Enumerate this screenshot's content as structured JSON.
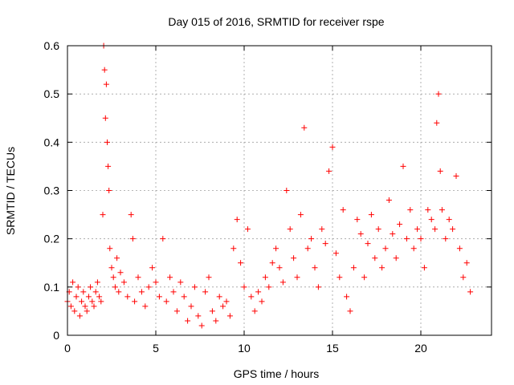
{
  "chart_data": {
    "type": "scatter",
    "title": "Day 015 of 2016, SRMTID for receiver rspe",
    "xlabel": "GPS time / hours",
    "ylabel": "SRMTID / TECUs",
    "xlim": [
      0,
      24
    ],
    "ylim": [
      0,
      0.6
    ],
    "xticks": [
      0,
      5,
      10,
      15,
      20
    ],
    "yticks": [
      0,
      0.1,
      0.2,
      0.3,
      0.4,
      0.5,
      0.6
    ],
    "xtick_labels": [
      "0",
      "5",
      "10",
      "15",
      "20"
    ],
    "ytick_labels": [
      "0",
      "0.1",
      "0.2",
      "0.3",
      "0.4",
      "0.5",
      "0.6"
    ],
    "grid": true,
    "marker": "+",
    "color": "#ff0000",
    "series": [
      {
        "name": "SRMTID",
        "x": [
          0.0,
          0.1,
          0.2,
          0.3,
          0.4,
          0.5,
          0.6,
          0.7,
          0.8,
          0.9,
          1.0,
          1.1,
          1.2,
          1.3,
          1.4,
          1.5,
          1.6,
          1.7,
          1.8,
          1.9,
          2.0,
          2.05,
          2.1,
          2.15,
          2.2,
          2.25,
          2.3,
          2.35,
          2.4,
          2.5,
          2.6,
          2.7,
          2.8,
          2.9,
          3.0,
          3.2,
          3.4,
          3.6,
          3.7,
          3.8,
          4.0,
          4.2,
          4.4,
          4.6,
          4.8,
          5.0,
          5.2,
          5.4,
          5.6,
          5.8,
          6.0,
          6.2,
          6.4,
          6.6,
          6.8,
          7.0,
          7.2,
          7.4,
          7.6,
          7.8,
          8.0,
          8.2,
          8.4,
          8.6,
          8.8,
          9.0,
          9.2,
          9.4,
          9.6,
          9.8,
          10.0,
          10.2,
          10.4,
          10.6,
          10.8,
          11.0,
          11.2,
          11.4,
          11.6,
          11.8,
          12.0,
          12.2,
          12.4,
          12.6,
          12.8,
          13.0,
          13.2,
          13.4,
          13.6,
          13.8,
          14.0,
          14.2,
          14.4,
          14.6,
          14.8,
          15.0,
          15.2,
          15.4,
          15.6,
          15.8,
          16.0,
          16.2,
          16.4,
          16.6,
          16.8,
          17.0,
          17.2,
          17.4,
          17.6,
          17.8,
          18.0,
          18.2,
          18.4,
          18.6,
          18.8,
          19.0,
          19.2,
          19.4,
          19.6,
          19.8,
          20.0,
          20.2,
          20.4,
          20.6,
          20.8,
          20.9,
          21.0,
          21.1,
          21.2,
          21.4,
          21.6,
          21.8,
          22.0,
          22.2,
          22.4,
          22.6,
          22.8
        ],
        "y": [
          0.07,
          0.09,
          0.06,
          0.11,
          0.05,
          0.08,
          0.1,
          0.04,
          0.07,
          0.09,
          0.06,
          0.05,
          0.08,
          0.1,
          0.07,
          0.06,
          0.09,
          0.11,
          0.08,
          0.07,
          0.25,
          0.6,
          0.55,
          0.45,
          0.52,
          0.4,
          0.35,
          0.3,
          0.18,
          0.14,
          0.12,
          0.1,
          0.16,
          0.09,
          0.13,
          0.11,
          0.08,
          0.25,
          0.2,
          0.07,
          0.12,
          0.09,
          0.06,
          0.1,
          0.14,
          0.11,
          0.08,
          0.2,
          0.07,
          0.12,
          0.09,
          0.05,
          0.11,
          0.08,
          0.03,
          0.06,
          0.1,
          0.04,
          0.02,
          0.09,
          0.12,
          0.05,
          0.03,
          0.08,
          0.06,
          0.07,
          0.04,
          0.18,
          0.24,
          0.15,
          0.1,
          0.22,
          0.08,
          0.05,
          0.09,
          0.07,
          0.12,
          0.1,
          0.15,
          0.18,
          0.14,
          0.11,
          0.3,
          0.22,
          0.16,
          0.12,
          0.25,
          0.43,
          0.18,
          0.2,
          0.14,
          0.1,
          0.22,
          0.19,
          0.34,
          0.39,
          0.17,
          0.12,
          0.26,
          0.08,
          0.05,
          0.14,
          0.24,
          0.21,
          0.12,
          0.19,
          0.25,
          0.16,
          0.22,
          0.14,
          0.18,
          0.28,
          0.21,
          0.16,
          0.23,
          0.35,
          0.2,
          0.26,
          0.18,
          0.22,
          0.2,
          0.14,
          0.26,
          0.24,
          0.22,
          0.44,
          0.5,
          0.34,
          0.26,
          0.2,
          0.24,
          0.22,
          0.33,
          0.18,
          0.12,
          0.15,
          0.09
        ]
      }
    ]
  }
}
